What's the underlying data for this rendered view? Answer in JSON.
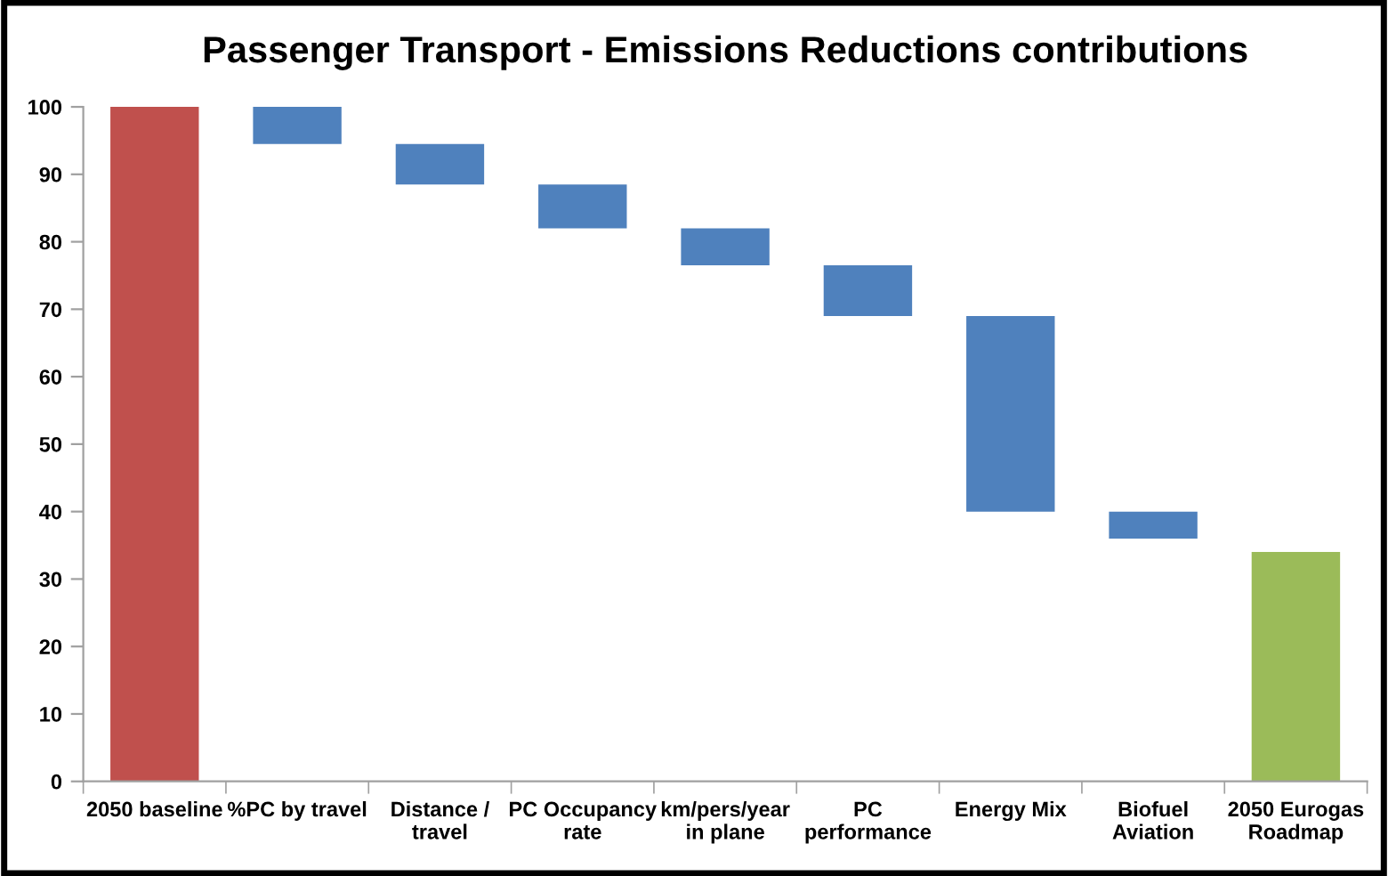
{
  "chart_data": {
    "type": "bar",
    "title": "Passenger Transport - Emissions Reductions contributions",
    "categories": [
      "2050 baseline",
      "%PC by travel",
      "Distance /\ntravel",
      "PC Occupancy\nrate",
      "km/pers/year\nin plane",
      "PC\nperformance",
      "Energy Mix",
      "Biofuel\nAviation",
      "2050 Eurogas\nRoadmap"
    ],
    "values": [
      100,
      5.5,
      6,
      6.5,
      5.5,
      7.5,
      29,
      4,
      34
    ],
    "base": [
      0,
      94.5,
      88.5,
      82,
      76.5,
      69,
      40,
      36,
      0
    ],
    "colors": [
      "#c0504d",
      "#4f81bd",
      "#4f81bd",
      "#4f81bd",
      "#4f81bd",
      "#4f81bd",
      "#4f81bd",
      "#4f81bd",
      "#9bbb59"
    ],
    "ylim": [
      0,
      100
    ],
    "yticks": [
      0,
      10,
      20,
      30,
      40,
      50,
      60,
      70,
      80,
      90,
      100
    ],
    "grid": false,
    "legend": false
  }
}
